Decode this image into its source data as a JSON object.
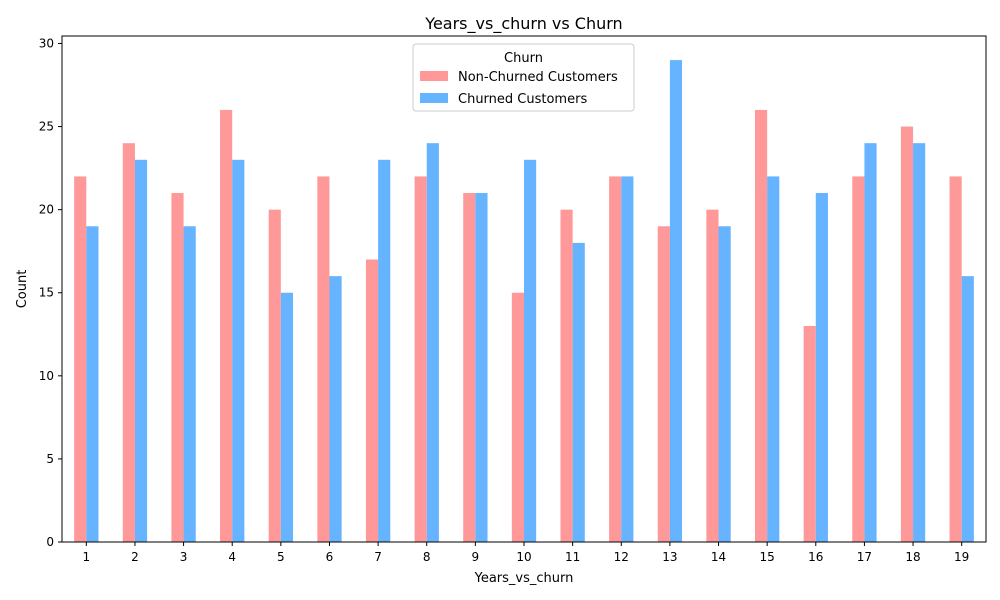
{
  "chart_data": {
    "type": "bar",
    "title": "Years_vs_churn vs Churn",
    "xlabel": "Years_vs_churn",
    "ylabel": "Count",
    "categories": [
      "1",
      "2",
      "3",
      "4",
      "5",
      "6",
      "7",
      "8",
      "9",
      "10",
      "11",
      "12",
      "13",
      "14",
      "15",
      "16",
      "17",
      "18",
      "19"
    ],
    "ylim": [
      0,
      30.45
    ],
    "yticks": [
      0,
      5,
      10,
      15,
      20,
      25,
      30
    ],
    "grid": false,
    "legend": {
      "title": "Churn",
      "placement": "top-center"
    },
    "series": [
      {
        "name": "Non-Churned Customers",
        "color": "#ff9999",
        "values": [
          22,
          24,
          21,
          26,
          20,
          22,
          17,
          22,
          21,
          15,
          20,
          22,
          19,
          20,
          26,
          13,
          22,
          25,
          22
        ]
      },
      {
        "name": "Churned Customers",
        "color": "#66b3ff",
        "values": [
          19,
          23,
          19,
          23,
          15,
          16,
          23,
          24,
          21,
          23,
          18,
          22,
          29,
          19,
          22,
          21,
          24,
          24,
          16
        ]
      }
    ]
  }
}
